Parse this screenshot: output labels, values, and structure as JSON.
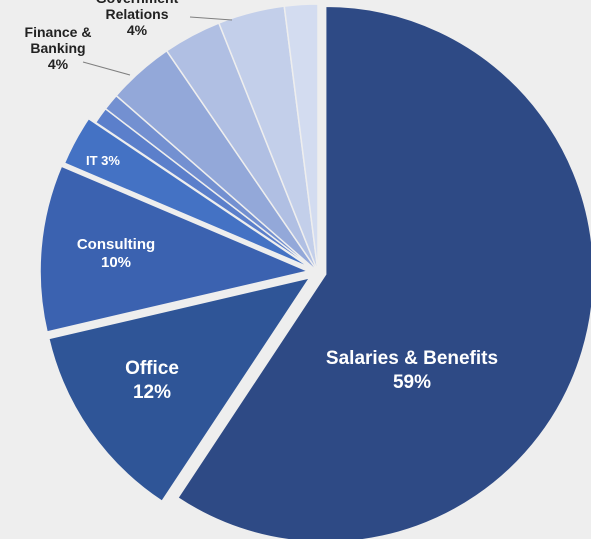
{
  "chart_data": {
    "type": "pie",
    "title": "",
    "slices": [
      {
        "label": "Salaries & Benefits",
        "value": 59,
        "label_text": [
          "Salaries & Benefits",
          "59%"
        ],
        "color": "#2e4a85",
        "exploded": true
      },
      {
        "label": "Office",
        "value": 12,
        "label_text": [
          "Office",
          "12%"
        ],
        "color": "#2f5597",
        "exploded": true
      },
      {
        "label": "Consulting",
        "value": 10,
        "label_text": [
          "Consulting",
          "10%"
        ],
        "color": "#3b62b0",
        "exploded": true
      },
      {
        "label": "IT",
        "value": 3,
        "label_text": [
          "IT 3%"
        ],
        "color": "#4472c4",
        "exploded": true
      },
      {
        "label": "",
        "value": 1,
        "label_text": [],
        "color": "#5b7fcb",
        "exploded": false
      },
      {
        "label": "",
        "value": 1,
        "label_text": [],
        "color": "#7390d1",
        "exploded": false
      },
      {
        "label": "Finance & Banking",
        "value": 4,
        "label_text": [
          "Finance &",
          "Banking",
          "4%"
        ],
        "color": "#93a8d9",
        "exploded": false
      },
      {
        "label": "",
        "value": 3.5,
        "label_text": [],
        "color": "#b0bfe3",
        "exploded": false
      },
      {
        "label": "Government Relations",
        "value": 4,
        "label_text": [
          "Government",
          "Relations",
          "4%"
        ],
        "color": "#c3cfea",
        "exploded": false
      },
      {
        "label": "",
        "value": 2,
        "label_text": [],
        "color": "#d3dcf0",
        "exploded": false
      }
    ],
    "legend": "none"
  }
}
